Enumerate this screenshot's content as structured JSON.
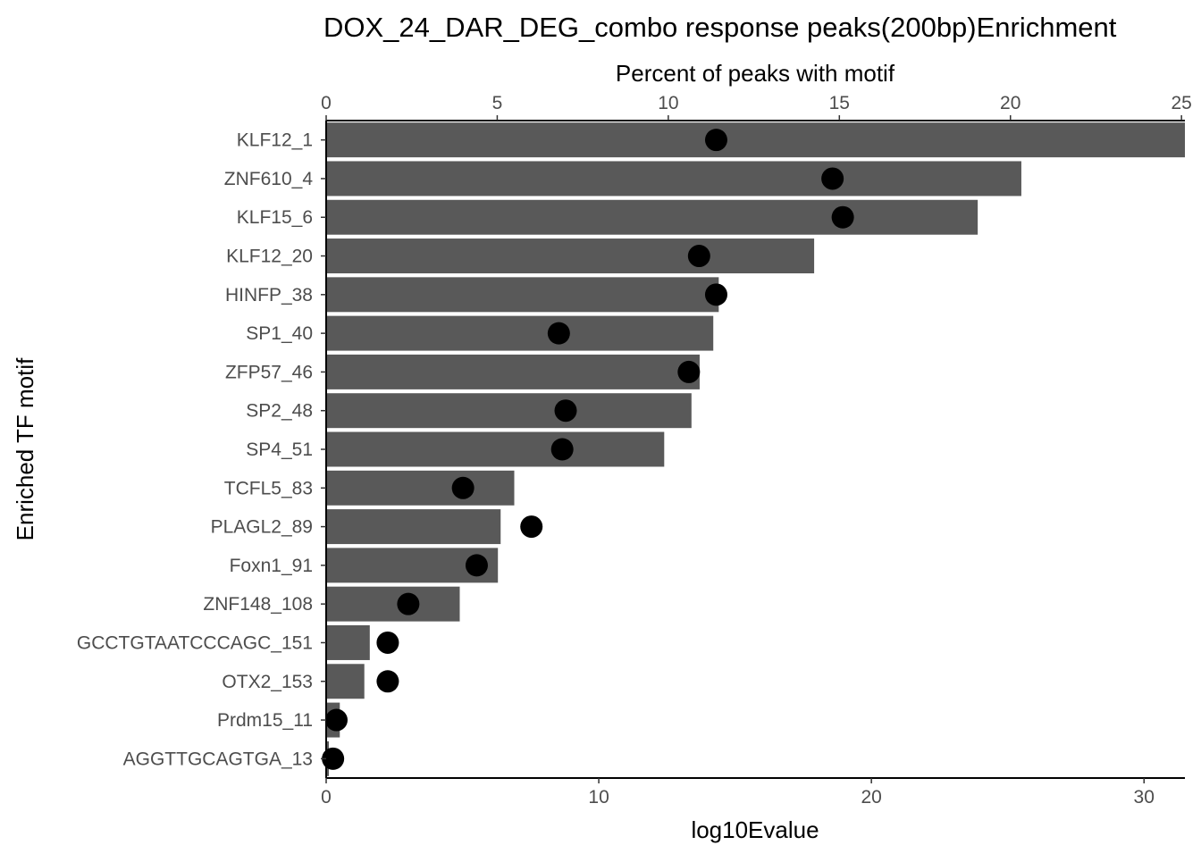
{
  "chart_data": {
    "type": "bar",
    "title": "DOX_24_DAR_DEG_combo response peaks(200bp)Enrichment",
    "ylabel": "Enriched TF motif",
    "xlabel": "log10Evalue",
    "x2label": "Percent of peaks with motif",
    "xlim": [
      0,
      31.5
    ],
    "x2lim": [
      0,
      25.1
    ],
    "xticks": [
      0,
      10,
      20,
      30
    ],
    "x2ticks": [
      0,
      5,
      10,
      15,
      20,
      25
    ],
    "categories": [
      "KLF12_1",
      "ZNF610_4",
      "KLF15_6",
      "KLF12_20",
      "HINFP_38",
      "SP1_40",
      "ZFP57_46",
      "SP2_48",
      "SP4_51",
      "TCFL5_83",
      "PLAGL2_89",
      "Foxn1_91",
      "ZNF148_108",
      "GCCTGTAATCCCAGC_151",
      "OTX2_153",
      "Prdm15_11",
      "AGGTTGCAGTGA_13"
    ],
    "series": [
      {
        "values": [
          31.5,
          25.5,
          23.9,
          17.9,
          14.4,
          14.2,
          13.7,
          13.4,
          12.4,
          6.9,
          6.4,
          6.3,
          4.9,
          1.6,
          1.4,
          0.5,
          0.1
        ],
        "color": "#595959",
        "mark": "bar",
        "axis": "bottom"
      },
      {
        "values": [
          11.4,
          14.8,
          15.1,
          10.9,
          11.4,
          6.8,
          10.6,
          7.0,
          6.9,
          4.0,
          6.0,
          4.4,
          2.4,
          1.8,
          1.8,
          0.3,
          0.2
        ],
        "color": "#000000",
        "mark": "point",
        "axis": "top"
      }
    ],
    "grid": false,
    "legend": "none"
  }
}
